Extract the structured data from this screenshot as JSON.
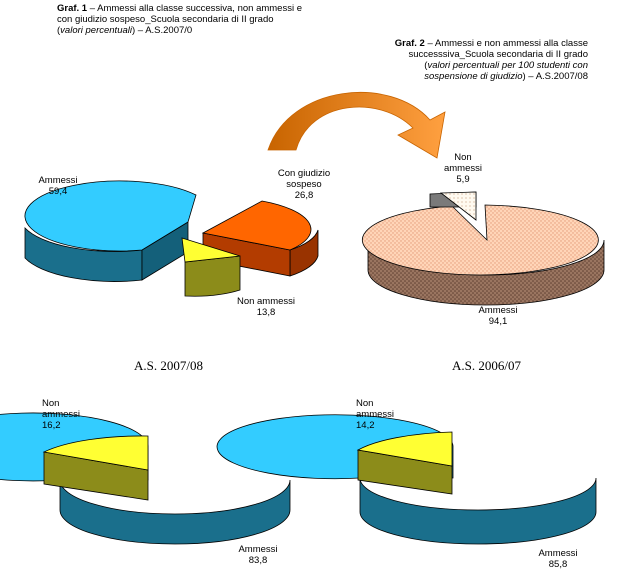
{
  "graf1": {
    "title_bold": "Graf. 1",
    "title_rest": " – Ammessi alla classe successiva, non ammessi e",
    "line2": "con giudizio sospeso_Scuola secondaria di II grado",
    "line3_italic": "valori percentuali",
    "line3_rest": ") – A.S.2007/0"
  },
  "graf2": {
    "title_bold": "Graf. 2",
    "title_rest": " – Ammessi e non ammessi alla classe",
    "line2": "successsiva_Scuola secondaria di II grado",
    "line3_italic": "valori percentuali per 100 studenti con",
    "line4_italic": "sospensione di giudizio",
    "line4_rest": ") – A.S.2007/08"
  },
  "year_labels": [
    "A.S. 2007/08",
    "A.S. 2006/07"
  ],
  "colors": {
    "ammessi_cyan": "#33ccff",
    "ammessi_cyan_side": "#1a6f8c",
    "giudizio_orange": "#ff6600",
    "giudizio_side": "#993300",
    "non_ammessi_yellow": "#ffff33",
    "non_ammessi_side": "#8c8c1a",
    "ammessi_peach": "#ffccaa",
    "ammessi_brown_side": "#8c6655",
    "arrow": "#ff9933"
  },
  "chart_data": [
    {
      "type": "pie",
      "chart": "Graf. 1",
      "slices": [
        {
          "label": "Ammessi",
          "value": 59.4,
          "value_text": "59,4"
        },
        {
          "label": "Con giudizio sospeso",
          "value": 26.8,
          "value_text": "26,8"
        },
        {
          "label": "Non ammessi",
          "value": 13.8,
          "value_text": "13,8"
        }
      ]
    },
    {
      "type": "pie",
      "chart": "Graf. 2",
      "slices": [
        {
          "label": "Ammessi",
          "value": 94.1,
          "value_text": "94,1"
        },
        {
          "label": "Non ammessi",
          "value": 5.9,
          "value_text": "5,9"
        }
      ]
    },
    {
      "type": "pie",
      "year": "A.S. 2007/08",
      "slices": [
        {
          "label": "Ammessi",
          "value": 83.8,
          "value_text": "83,8"
        },
        {
          "label": "Non ammessi",
          "value": 16.2,
          "value_text": "16,2"
        }
      ]
    },
    {
      "type": "pie",
      "year": "A.S. 2006/07",
      "slices": [
        {
          "label": "Ammessi",
          "value": 85.8,
          "value_text": "85,8"
        },
        {
          "label": "Non ammessi",
          "value": 14.2,
          "value_text": "14,2"
        }
      ]
    }
  ],
  "labels": {
    "c1_ammessi": "Ammessi",
    "c1_giudizio_1": "Con giudizio",
    "c1_giudizio_2": "sospeso",
    "c1_non_ammessi": "Non ammessi",
    "c2_non": "Non",
    "c2_ammessi_word": "ammessi",
    "c2_ammessi": "Ammessi",
    "c3_non": "Non",
    "c3_ammessi_word": "ammessi",
    "c3_ammessi": "Ammessi",
    "c4_non": "Non",
    "c4_ammessi_word": "ammessi",
    "c4_ammessi": "Ammessi"
  }
}
